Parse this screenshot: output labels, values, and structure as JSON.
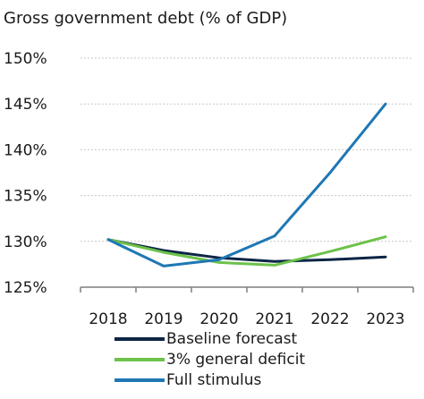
{
  "chart_data": {
    "type": "line",
    "title": "Gross government debt (% of GDP)",
    "categories": [
      "2018",
      "2019",
      "2020",
      "2021",
      "2022",
      "2023"
    ],
    "y_ticks": [
      "150%",
      "145%",
      "140%",
      "135%",
      "130%",
      "125%"
    ],
    "ylim": [
      125,
      150
    ],
    "grid": true,
    "legend_position": "bottom",
    "series": [
      {
        "name": "Baseline forecast",
        "color": "#0b2545",
        "values": [
          130.2,
          129.0,
          128.2,
          127.8,
          128.0,
          128.3
        ]
      },
      {
        "name": "3% general deficit",
        "color": "#6cc24a",
        "values": [
          130.2,
          128.8,
          127.7,
          127.4,
          128.9,
          130.5
        ]
      },
      {
        "name": "Full stimulus",
        "color": "#1f77b4",
        "values": [
          130.2,
          127.3,
          128.0,
          130.6,
          137.5,
          145.0
        ]
      }
    ]
  }
}
